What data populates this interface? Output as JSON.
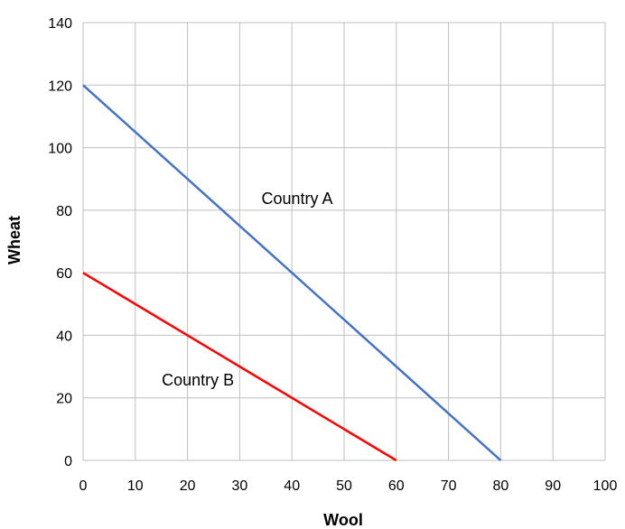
{
  "chart_data": {
    "type": "line",
    "title": "",
    "xlabel": "Wool",
    "ylabel": "Wheat",
    "xlim": [
      0,
      100
    ],
    "ylim": [
      0,
      140
    ],
    "xticks": [
      "0",
      "10",
      "20",
      "30",
      "40",
      "50",
      "60",
      "70",
      "80",
      "90",
      "100"
    ],
    "yticks": [
      "0",
      "20",
      "40",
      "60",
      "80",
      "100",
      "120",
      "140"
    ],
    "grid": true,
    "legend": "none",
    "series": [
      {
        "name": "Country A",
        "color": "#4472C4",
        "x": [
          0,
          80
        ],
        "y": [
          120,
          0
        ]
      },
      {
        "name": "Country B",
        "color": "#FF0000",
        "x": [
          0,
          60
        ],
        "y": [
          60,
          0
        ]
      }
    ],
    "annotations": [
      {
        "text": "Country A",
        "x": 41,
        "y": 82
      },
      {
        "text": "Country B",
        "x": 22,
        "y": 24
      }
    ]
  }
}
